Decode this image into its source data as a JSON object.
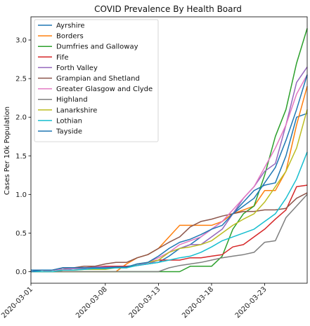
{
  "chart_data": {
    "type": "line",
    "title": "COVID Prevalence By Health Board",
    "xlabel": "",
    "ylabel": "Cases Per 10k Population",
    "x_type": "date",
    "xlim": [
      "2020-03-01",
      "2020-03-27"
    ],
    "ylim": [
      -0.15,
      3.3
    ],
    "x_ticks": [
      "2020-03-01",
      "2020-03-08",
      "2020-03-13",
      "2020-03-18",
      "2020-03-23"
    ],
    "y_ticks": [
      0.0,
      0.5,
      1.0,
      1.5,
      2.0,
      2.5,
      3.0
    ],
    "legend_position": "top-left",
    "grid": false,
    "x": [
      "2020-03-01",
      "2020-03-02",
      "2020-03-03",
      "2020-03-04",
      "2020-03-05",
      "2020-03-06",
      "2020-03-07",
      "2020-03-08",
      "2020-03-09",
      "2020-03-10",
      "2020-03-11",
      "2020-03-12",
      "2020-03-13",
      "2020-03-14",
      "2020-03-15",
      "2020-03-16",
      "2020-03-17",
      "2020-03-18",
      "2020-03-19",
      "2020-03-20",
      "2020-03-21",
      "2020-03-22",
      "2020-03-23",
      "2020-03-24",
      "2020-03-25",
      "2020-03-26",
      "2020-03-27"
    ],
    "series": [
      {
        "name": "Ayrshire",
        "color": "#1f77b4",
        "values": [
          0.02,
          0.02,
          0.02,
          0.05,
          0.05,
          0.05,
          0.05,
          0.05,
          0.05,
          0.05,
          0.1,
          0.1,
          0.12,
          0.2,
          0.3,
          0.35,
          0.45,
          0.55,
          0.65,
          0.75,
          0.9,
          1.05,
          1.12,
          1.15,
          1.5,
          2.0,
          2.05
        ]
      },
      {
        "name": "Borders",
        "color": "#ff7f0e",
        "values": [
          0.0,
          0.0,
          0.0,
          0.0,
          0.0,
          0.0,
          0.0,
          0.0,
          0.0,
          0.1,
          0.18,
          0.22,
          0.3,
          0.45,
          0.6,
          0.6,
          0.6,
          0.6,
          0.65,
          0.75,
          0.8,
          0.85,
          1.05,
          1.05,
          1.3,
          1.9,
          2.4
        ]
      },
      {
        "name": "Dumfries and Galloway",
        "color": "#2ca02c",
        "values": [
          0.0,
          0.0,
          0.0,
          0.0,
          0.0,
          0.0,
          0.0,
          0.0,
          0.0,
          0.0,
          0.0,
          0.0,
          0.0,
          0.0,
          0.0,
          0.07,
          0.07,
          0.07,
          0.2,
          0.55,
          0.75,
          0.85,
          1.25,
          1.75,
          2.1,
          2.7,
          3.15
        ]
      },
      {
        "name": "Fife",
        "color": "#d62728",
        "values": [
          0.0,
          0.0,
          0.02,
          0.03,
          0.05,
          0.05,
          0.06,
          0.07,
          0.07,
          0.07,
          0.08,
          0.12,
          0.15,
          0.15,
          0.15,
          0.18,
          0.18,
          0.2,
          0.22,
          0.32,
          0.35,
          0.45,
          0.55,
          0.68,
          0.8,
          1.1,
          1.12
        ]
      },
      {
        "name": "Forth Valley",
        "color": "#9467bd",
        "values": [
          0.0,
          0.0,
          0.0,
          0.02,
          0.04,
          0.04,
          0.06,
          0.06,
          0.06,
          0.06,
          0.08,
          0.1,
          0.15,
          0.25,
          0.3,
          0.35,
          0.35,
          0.45,
          0.55,
          0.75,
          0.95,
          1.1,
          1.3,
          1.4,
          1.9,
          2.45,
          2.65
        ]
      },
      {
        "name": "Grampian and Shetland",
        "color": "#8c564b",
        "values": [
          0.0,
          0.02,
          0.02,
          0.05,
          0.05,
          0.07,
          0.07,
          0.1,
          0.12,
          0.12,
          0.18,
          0.22,
          0.3,
          0.38,
          0.45,
          0.58,
          0.65,
          0.68,
          0.72,
          0.75,
          0.78,
          0.78,
          0.8,
          0.8,
          0.82,
          0.95,
          1.02
        ]
      },
      {
        "name": "Greater Glasgow and Clyde",
        "color": "#e377c2",
        "values": [
          0.0,
          0.0,
          0.02,
          0.03,
          0.04,
          0.05,
          0.05,
          0.05,
          0.06,
          0.06,
          0.08,
          0.12,
          0.18,
          0.25,
          0.35,
          0.4,
          0.45,
          0.55,
          0.65,
          0.8,
          0.95,
          1.1,
          1.35,
          1.6,
          1.9,
          2.3,
          2.55
        ]
      },
      {
        "name": "Highland",
        "color": "#7f7f7f",
        "values": [
          0.0,
          0.0,
          0.0,
          0.0,
          0.0,
          0.0,
          0.0,
          0.0,
          0.0,
          0.0,
          0.0,
          0.0,
          0.0,
          0.05,
          0.08,
          0.1,
          0.12,
          0.15,
          0.18,
          0.2,
          0.22,
          0.25,
          0.38,
          0.4,
          0.7,
          0.85,
          1.0
        ]
      },
      {
        "name": "Lanarkshire",
        "color": "#bcbd22",
        "values": [
          0.0,
          0.0,
          0.0,
          0.02,
          0.02,
          0.03,
          0.03,
          0.03,
          0.05,
          0.05,
          0.1,
          0.12,
          0.15,
          0.25,
          0.3,
          0.32,
          0.35,
          0.4,
          0.5,
          0.6,
          0.68,
          0.75,
          0.9,
          1.1,
          1.3,
          1.6,
          2.1
        ]
      },
      {
        "name": "Lothian",
        "color": "#17becf",
        "values": [
          0.0,
          0.0,
          0.0,
          0.02,
          0.02,
          0.03,
          0.04,
          0.04,
          0.05,
          0.05,
          0.08,
          0.1,
          0.12,
          0.15,
          0.18,
          0.2,
          0.25,
          0.32,
          0.4,
          0.45,
          0.5,
          0.55,
          0.65,
          0.75,
          0.95,
          1.2,
          1.55
        ]
      },
      {
        "name": "Tayside",
        "color": "#1f77b4",
        "values": [
          0.0,
          0.02,
          0.02,
          0.05,
          0.05,
          0.05,
          0.05,
          0.05,
          0.06,
          0.06,
          0.1,
          0.12,
          0.2,
          0.3,
          0.38,
          0.42,
          0.48,
          0.55,
          0.6,
          0.75,
          0.85,
          0.95,
          1.15,
          1.35,
          1.7,
          2.1,
          2.55
        ]
      }
    ]
  }
}
